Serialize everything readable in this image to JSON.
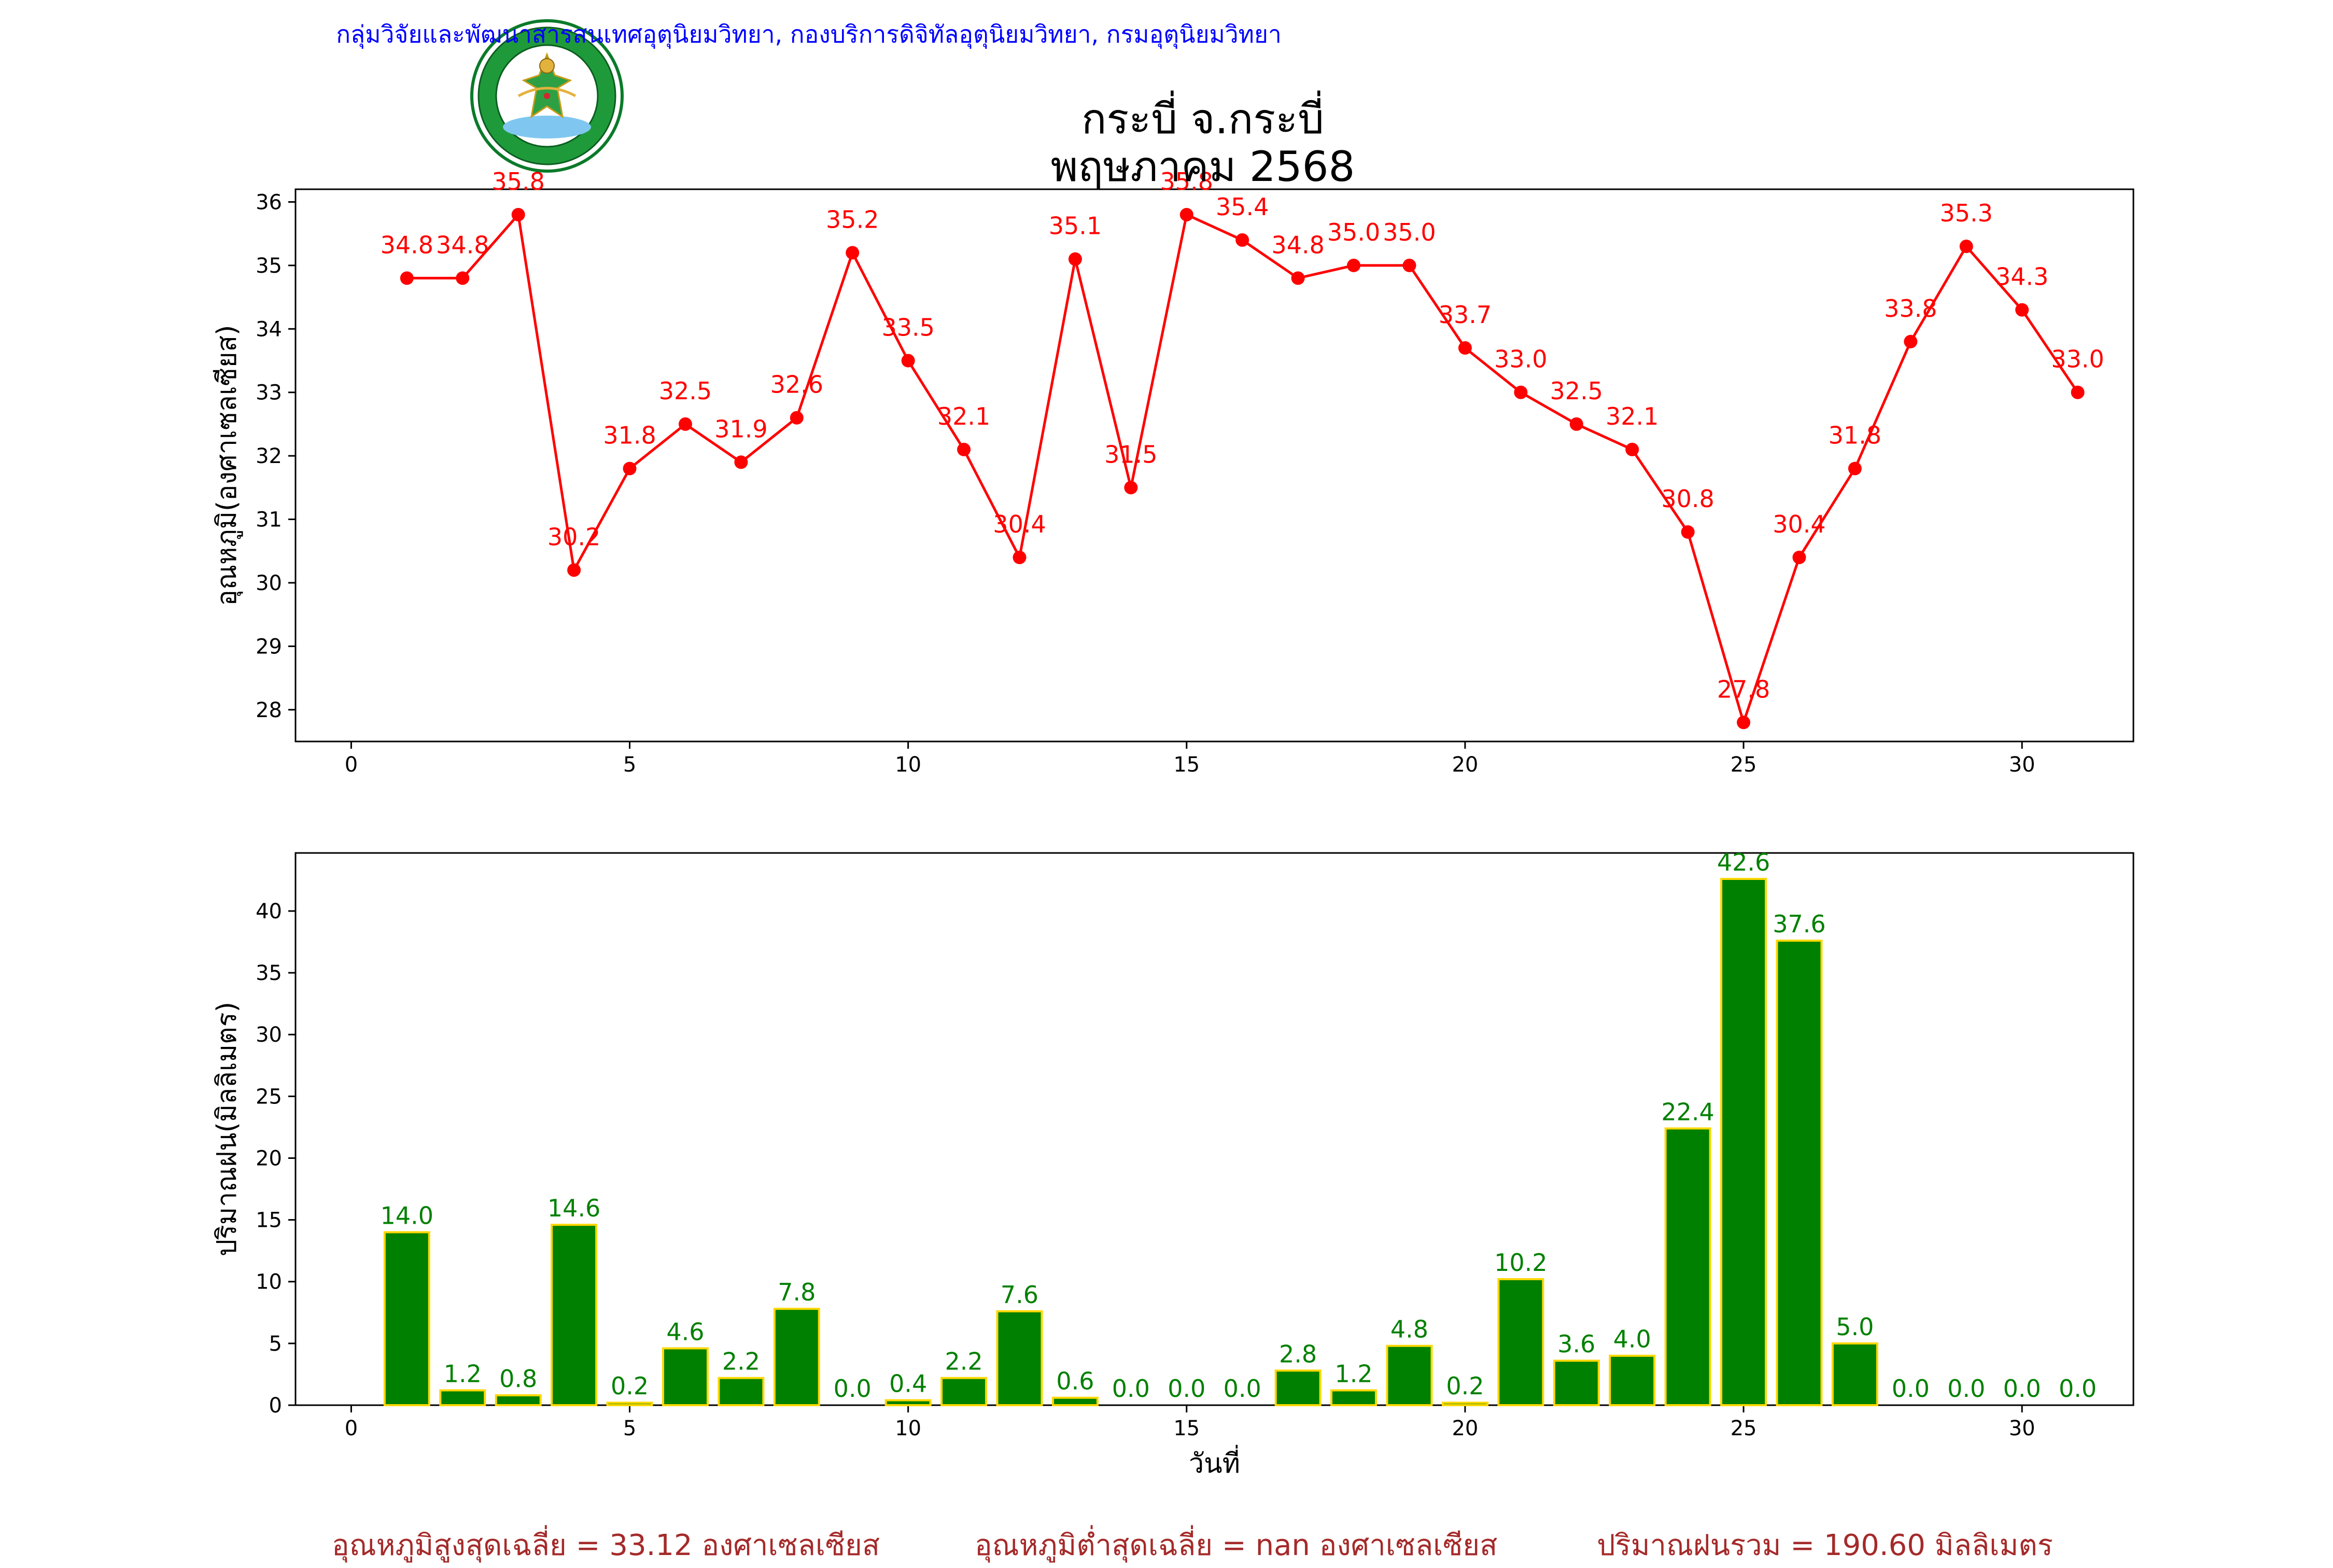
{
  "header": {
    "credit": "กลุ่มวิจัยและพัฒนาสารสนเทศอุตุนิยมวิทยา, กองบริการดิจิทัลอุตุนิยมวิทยา, กรมอุตุนิยมวิทยา",
    "title_line1": "กระบี่ จ.กระบี่",
    "title_line2": "พฤษภาคม 2568",
    "logo_text": "กรมอุตุนิยมวิทยา METEOROLOGICAL DEPARTMENT"
  },
  "footer": {
    "avg_max": "อุณหภูมิสูงสุดเฉลี่ย = 33.12 องศาเซลเซียส",
    "avg_min": "อุณหภูมิต่ำสุดเฉลี่ย = nan องศาเซลเซียส",
    "total_rain": "ปริมาณฝนรวม = 190.60 มิลลิเมตร"
  },
  "colors": {
    "temperature": "#ff0000",
    "rain_fill": "#008000",
    "rain_edge": "#ffd700",
    "rain_label": "#008000",
    "credit": "#0000ff",
    "footer": "#a52a2a"
  },
  "chart_data": [
    {
      "type": "line",
      "ylabel": "อุณหภูมิ(องศาเซลเซียส)",
      "xlabel": "",
      "xlim": [
        -1,
        32
      ],
      "ylim": [
        27.5,
        36.2
      ],
      "xticks": [
        0,
        5,
        10,
        15,
        20,
        25,
        30
      ],
      "yticks": [
        28,
        29,
        30,
        31,
        32,
        33,
        34,
        35,
        36
      ],
      "grid": false,
      "series": [
        {
          "x": [
            1,
            2,
            3,
            4,
            5,
            6,
            7,
            8,
            9,
            10,
            11,
            12,
            13,
            14,
            15,
            16,
            17,
            18,
            19,
            20,
            21,
            22,
            23,
            24,
            25,
            26,
            27,
            28,
            29,
            30,
            31
          ],
          "values": [
            34.8,
            34.8,
            35.8,
            30.2,
            31.8,
            32.5,
            31.9,
            32.6,
            35.2,
            33.5,
            32.1,
            30.4,
            35.1,
            31.5,
            35.8,
            35.4,
            34.8,
            35.0,
            35.0,
            33.7,
            33.0,
            32.5,
            32.1,
            30.8,
            27.8,
            30.4,
            31.8,
            33.8,
            35.3,
            34.3,
            33.0
          ],
          "labels": [
            "34.8",
            "34.8",
            "35.8",
            "30.2",
            "31.8",
            "32.5",
            "31.9",
            "32.6",
            "35.2",
            "33.5",
            "32.1",
            "30.4",
            "35.1",
            "31.5",
            "35.8",
            "35.4",
            "34.8",
            "35.0",
            "35.0",
            "33.7",
            "33.0",
            "32.5",
            "32.1",
            "30.8",
            "27.8",
            "30.4",
            "31.8",
            "33.8",
            "35.3",
            "34.3",
            "33.0"
          ]
        }
      ]
    },
    {
      "type": "bar",
      "ylabel": "ปริมาณฝน(มิลลิเมตร)",
      "xlabel": "วันที่",
      "xlim": [
        -1,
        32
      ],
      "ylim": [
        0,
        44.7
      ],
      "xticks": [
        0,
        5,
        10,
        15,
        20,
        25,
        30
      ],
      "yticks": [
        0,
        5,
        10,
        15,
        20,
        25,
        30,
        35,
        40
      ],
      "grid": false,
      "series": [
        {
          "x": [
            1,
            2,
            3,
            4,
            5,
            6,
            7,
            8,
            9,
            10,
            11,
            12,
            13,
            14,
            15,
            16,
            17,
            18,
            19,
            20,
            21,
            22,
            23,
            24,
            25,
            26,
            27,
            28,
            29,
            30,
            31
          ],
          "values": [
            14.0,
            1.2,
            0.8,
            14.6,
            0.2,
            4.6,
            2.2,
            7.8,
            0.0,
            0.4,
            2.2,
            7.6,
            0.6,
            0.0,
            0.0,
            0.0,
            2.8,
            1.2,
            4.8,
            0.2,
            10.2,
            3.6,
            4.0,
            22.4,
            42.6,
            37.6,
            5.0,
            0.0,
            0.0,
            0.0,
            0.0
          ],
          "labels": [
            "14.0",
            "1.2",
            "0.8",
            "14.6",
            "0.2",
            "4.6",
            "2.2",
            "7.8",
            "0.0",
            "0.4",
            "2.2",
            "7.6",
            "0.6",
            "0.0",
            "0.0",
            "0.0",
            "2.8",
            "1.2",
            "4.8",
            "0.2",
            "10.2",
            "3.6",
            "4.0",
            "22.4",
            "42.6",
            "37.6",
            "5.0",
            "0.0",
            "0.0",
            "0.0",
            "0.0"
          ]
        }
      ]
    }
  ]
}
